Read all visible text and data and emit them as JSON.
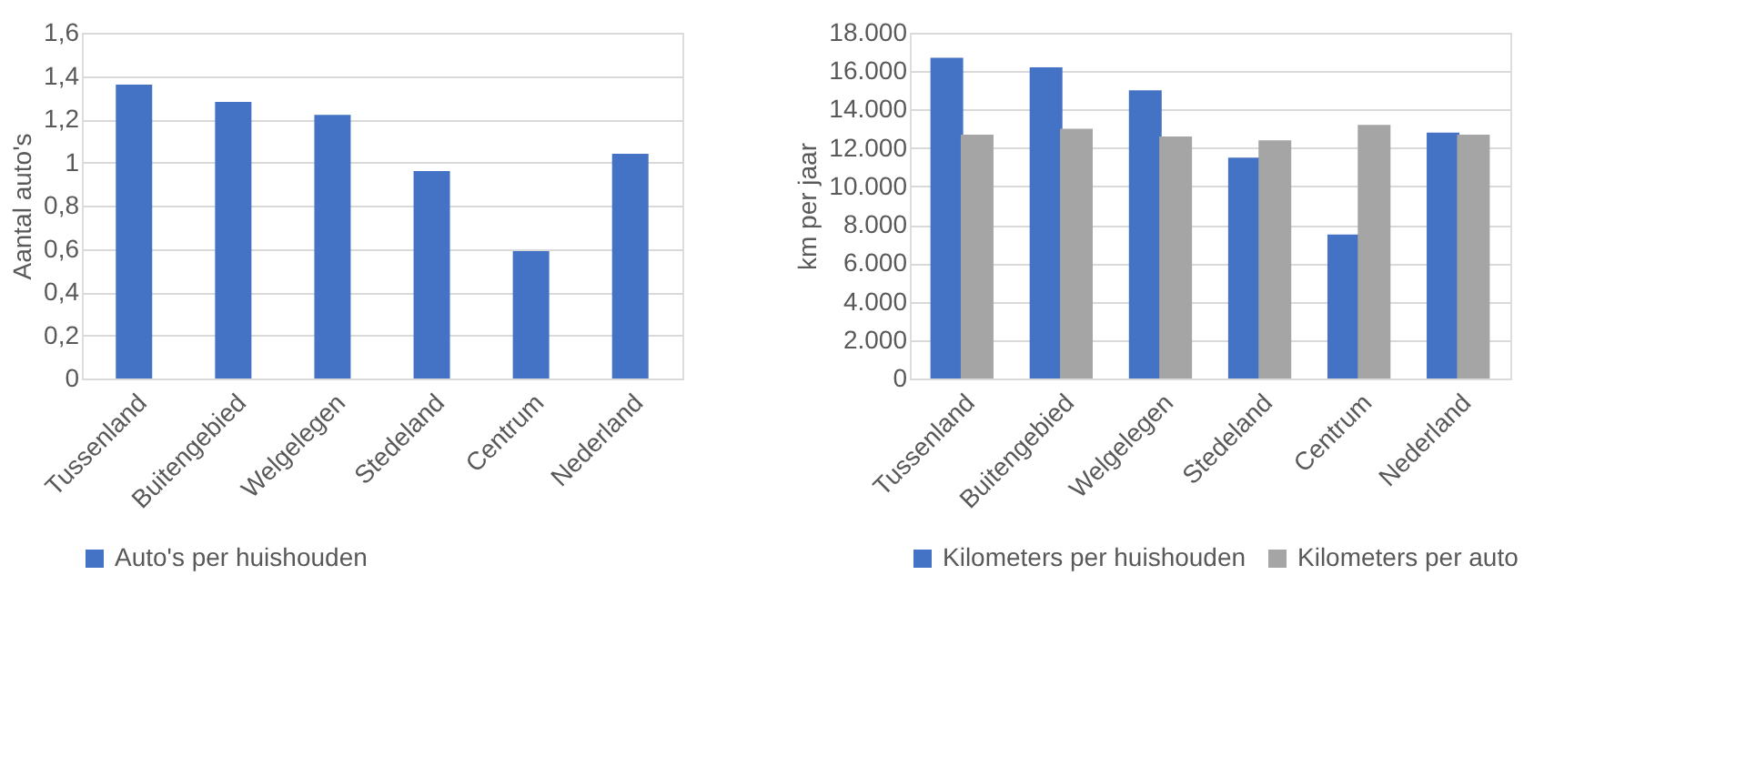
{
  "chart_data": [
    {
      "type": "bar",
      "ylabel": "Aantal auto's",
      "categories": [
        "Tussenland",
        "Buitengebied",
        "Welgelegen",
        "Stedeland",
        "Centrum",
        "Nederland"
      ],
      "series": [
        {
          "name": "Auto's per huishouden",
          "color": "#4472c4",
          "values": [
            1.36,
            1.28,
            1.22,
            0.96,
            0.59,
            1.04
          ]
        }
      ],
      "ylim": [
        0,
        1.6
      ],
      "yticks": [
        0,
        {
          "value": 0.2,
          "label": "0,2"
        },
        {
          "value": 0.4,
          "label": "0,4"
        },
        {
          "value": 0.6,
          "label": "0,6"
        },
        {
          "value": 0.8,
          "label": "0,8"
        },
        1,
        {
          "value": 1.2,
          "label": "1,2"
        },
        {
          "value": 1.4,
          "label": "1,4"
        },
        {
          "value": 1.6,
          "label": "1,6"
        }
      ],
      "grid": "y",
      "legend": "bottom"
    },
    {
      "type": "bar",
      "ylabel": "km per jaar",
      "categories": [
        "Tussenland",
        "Buitengebied",
        "Welgelegen",
        "Stedeland",
        "Centrum",
        "Nederland"
      ],
      "series": [
        {
          "name": "Kilometers per huishouden",
          "color": "#4472c4",
          "values": [
            16700,
            16200,
            15000,
            11500,
            7500,
            12800
          ]
        },
        {
          "name": "Kilometers per auto",
          "color": "#a5a5a5",
          "values": [
            12700,
            13000,
            12600,
            12400,
            13200,
            12700
          ]
        }
      ],
      "ylim": [
        0,
        18000
      ],
      "yticks": [
        0,
        {
          "value": 2000,
          "label": "2.000"
        },
        {
          "value": 4000,
          "label": "4.000"
        },
        {
          "value": 6000,
          "label": "6.000"
        },
        {
          "value": 8000,
          "label": "8.000"
        },
        {
          "value": 10000,
          "label": "10.000"
        },
        {
          "value": 12000,
          "label": "12.000"
        },
        {
          "value": 14000,
          "label": "14.000"
        },
        {
          "value": 16000,
          "label": "16.000"
        },
        {
          "value": 18000,
          "label": "18.000"
        }
      ],
      "grid": "y",
      "legend": "bottom"
    }
  ]
}
